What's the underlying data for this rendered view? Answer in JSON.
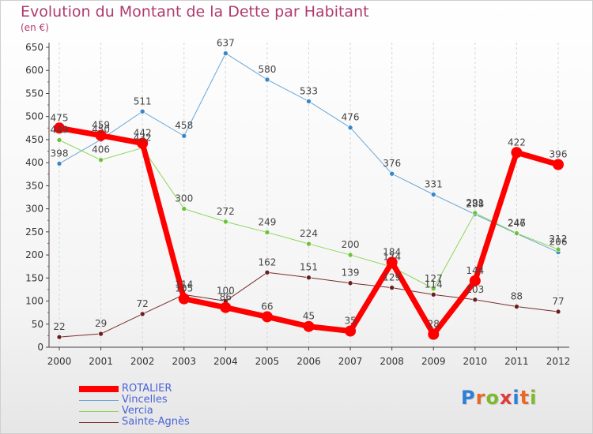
{
  "header": {
    "title": "Evolution du Montant de la Dette par Habitant",
    "subtitle": "(en €)"
  },
  "logo": {
    "text": "Proxiti",
    "letters": [
      "P",
      "r",
      "o",
      "x",
      "i",
      "t",
      "i"
    ],
    "colors": [
      "#2e7fd6",
      "#e8682a",
      "#7db92b",
      "#e03b3b",
      "#2e7fd6",
      "#e8682a",
      "#7db92b"
    ]
  },
  "chart_data": {
    "type": "line",
    "title": "Evolution du Montant de la Dette par Habitant",
    "subtitle": "(en €)",
    "x": [
      "2000",
      "2001",
      "2002",
      "2003",
      "2004",
      "2005",
      "2006",
      "2007",
      "2008",
      "2009",
      "2010",
      "2011",
      "2012"
    ],
    "ylim": [
      0,
      650
    ],
    "yticks": [
      0,
      50,
      100,
      150,
      200,
      250,
      300,
      350,
      400,
      450,
      500,
      550,
      600,
      650
    ],
    "grid": "vertical dashed",
    "legend_position": "bottom-left",
    "series": [
      {
        "name": "Vincelles",
        "color": "#6aa6d6",
        "width": 1,
        "values": [
          398,
          450,
          511,
          458,
          637,
          580,
          533,
          476,
          376,
          331,
          288,
          246,
          206
        ],
        "labels": [
          "398",
          "450",
          "511",
          "458",
          "637",
          "580",
          "533",
          "476",
          "376",
          "331",
          "288",
          "246",
          "206"
        ]
      },
      {
        "name": "Vercia",
        "color": "#8ed65a",
        "width": 1,
        "values": [
          449,
          406,
          432,
          300,
          272,
          249,
          224,
          200,
          174,
          127,
          291,
          247,
          212
        ],
        "labels": [
          "449",
          "406",
          "432",
          "300",
          "272",
          "249",
          "224",
          "200",
          "174",
          "127",
          "291",
          "247",
          "212"
        ]
      },
      {
        "name": "Sainte-Agnès",
        "color": "#7a2d2d",
        "width": 1,
        "values": [
          22,
          29,
          72,
          114,
          100,
          162,
          151,
          139,
          129,
          114,
          103,
          88,
          77
        ],
        "labels": [
          "22",
          "29",
          "72",
          "114",
          "100",
          "162",
          "151",
          "139",
          "129",
          "114",
          "103",
          "88",
          "77"
        ]
      },
      {
        "name": "ROTALIER",
        "color": "#ff0000",
        "width": 7,
        "values": [
          475,
          459,
          442,
          105,
          86,
          66,
          45,
          35,
          184,
          28,
          144,
          422,
          396
        ],
        "labels": [
          "475",
          "459",
          "442",
          "105",
          "86",
          "66",
          "45",
          "35",
          "184",
          "28",
          "144",
          "422",
          "396"
        ]
      }
    ],
    "legend_order": [
      "ROTALIER",
      "Vincelles",
      "Vercia",
      "Sainte-Agnès"
    ]
  }
}
